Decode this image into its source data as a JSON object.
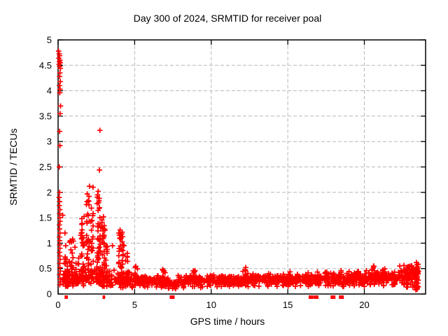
{
  "chart_data": {
    "type": "scatter",
    "title": "Day 300 of 2024, SRMTID for receiver poal",
    "xlabel": "GPS time / hours",
    "ylabel": "SRMTID / TECUs",
    "xlim": [
      0,
      24
    ],
    "ylim": [
      0,
      5
    ],
    "xtick_labels": [
      "0",
      "5",
      "10",
      "15",
      "20"
    ],
    "ytick_labels": [
      "0",
      "0.5",
      "1",
      "1.5",
      "2",
      "2.5",
      "3",
      "3.5",
      "4",
      "4.5",
      "5"
    ],
    "grid": true,
    "legend": "none",
    "marker": "plus",
    "marker_color": "#ff0000",
    "grid_color": "#b8b8b8",
    "border_color": "#000000",
    "background_color": "#ffffff",
    "points_explicit": [
      [
        0.03,
        4.78
      ],
      [
        0.07,
        4.73
      ],
      [
        0.1,
        4.69
      ],
      [
        0.05,
        4.64
      ],
      [
        0.12,
        4.6
      ],
      [
        0.08,
        4.57
      ],
      [
        0.14,
        4.55
      ],
      [
        0.06,
        4.52
      ],
      [
        0.1,
        4.48
      ],
      [
        0.15,
        4.44
      ],
      [
        0.12,
        4.35
      ],
      [
        0.1,
        4.28
      ],
      [
        0.14,
        4.18
      ],
      [
        0.09,
        4.1
      ],
      [
        0.13,
        4.03
      ],
      [
        0.11,
        3.96
      ],
      [
        0.16,
        3.7
      ],
      [
        0.13,
        3.55
      ],
      [
        0.1,
        3.2
      ],
      [
        0.12,
        2.92
      ],
      [
        0.08,
        2.5
      ],
      [
        0.1,
        2.0
      ],
      [
        0.07,
        1.9
      ],
      [
        0.1,
        1.82
      ],
      [
        0.08,
        1.74
      ],
      [
        0.12,
        1.66
      ],
      [
        0.09,
        1.58
      ],
      [
        0.11,
        1.5
      ],
      [
        0.13,
        1.43
      ],
      [
        0.08,
        1.36
      ],
      [
        0.1,
        1.28
      ],
      [
        0.12,
        1.2
      ],
      [
        0.09,
        1.12
      ],
      [
        0.11,
        1.05
      ],
      [
        0.1,
        0.97
      ],
      [
        0.12,
        0.9
      ],
      [
        0.09,
        0.82
      ],
      [
        0.11,
        0.75
      ],
      [
        0.13,
        0.68
      ],
      [
        0.1,
        0.6
      ],
      [
        0.12,
        0.52
      ],
      [
        0.14,
        0.45
      ],
      [
        0.1,
        0.38
      ],
      [
        0.12,
        0.3
      ],
      [
        0.15,
        0.24
      ],
      [
        0.11,
        0.18
      ],
      [
        0.3,
        1.55
      ],
      [
        0.45,
        1.2
      ],
      [
        0.5,
        0.95
      ],
      [
        0.75,
        1.02
      ],
      [
        0.95,
        1.08
      ],
      [
        1.1,
        0.92
      ],
      [
        2.73,
        3.22
      ],
      [
        2.7,
        2.44
      ],
      [
        2.05,
        2.12
      ],
      [
        2.28,
        2.1
      ],
      [
        1.9,
        1.97
      ],
      [
        2.02,
        1.92
      ],
      [
        2.62,
        2.02
      ],
      [
        2.58,
        1.95
      ],
      [
        2.66,
        1.88
      ],
      [
        2.55,
        1.78
      ],
      [
        2.7,
        1.7
      ],
      [
        2.96,
        1.52
      ],
      [
        3.05,
        1.25
      ],
      [
        3.55,
        0.95
      ],
      [
        4.05,
        1.26
      ],
      [
        4.15,
        1.18
      ],
      [
        4.1,
        1.1
      ],
      [
        4.3,
        0.95
      ],
      [
        12.25,
        0.52
      ],
      [
        20.6,
        0.55
      ],
      [
        23.4,
        0.62
      ],
      [
        23.45,
        0.58
      ]
    ],
    "density_columns": [
      {
        "x": 0.55,
        "w": 0.25,
        "n": 25,
        "y0": 0.15,
        "y1": 0.75
      },
      {
        "x": 0.85,
        "w": 0.3,
        "n": 20,
        "y0": 0.2,
        "y1": 1.05
      },
      {
        "x": 1.25,
        "w": 0.25,
        "n": 15,
        "y0": 0.2,
        "y1": 0.8
      },
      {
        "x": 1.6,
        "w": 0.25,
        "n": 30,
        "y0": 0.25,
        "y1": 1.55
      },
      {
        "x": 1.95,
        "w": 0.2,
        "n": 30,
        "y0": 0.3,
        "y1": 2.0
      },
      {
        "x": 2.2,
        "w": 0.2,
        "n": 25,
        "y0": 0.3,
        "y1": 1.75
      },
      {
        "x": 2.65,
        "w": 0.25,
        "n": 45,
        "y0": 0.2,
        "y1": 2.0
      },
      {
        "x": 2.95,
        "w": 0.2,
        "n": 30,
        "y0": 0.15,
        "y1": 1.5
      },
      {
        "x": 3.15,
        "w": 0.15,
        "n": 15,
        "y0": 0.15,
        "y1": 1.0
      },
      {
        "x": 4.1,
        "w": 0.3,
        "n": 35,
        "y0": 0.15,
        "y1": 1.25
      },
      {
        "x": 4.45,
        "w": 0.2,
        "n": 15,
        "y0": 0.15,
        "y1": 0.8
      },
      {
        "x": 5.1,
        "w": 0.2,
        "n": 10,
        "y0": 0.3,
        "y1": 0.57
      },
      {
        "x": 6.9,
        "w": 0.2,
        "n": 8,
        "y0": 0.3,
        "y1": 0.5
      },
      {
        "x": 8.8,
        "w": 0.3,
        "n": 10,
        "y0": 0.3,
        "y1": 0.47
      },
      {
        "x": 12.2,
        "w": 0.3,
        "n": 12,
        "y0": 0.3,
        "y1": 0.52
      },
      {
        "x": 15.1,
        "w": 0.2,
        "n": 8,
        "y0": 0.3,
        "y1": 0.45
      },
      {
        "x": 17.6,
        "w": 0.2,
        "n": 8,
        "y0": 0.28,
        "y1": 0.45
      },
      {
        "x": 18.4,
        "w": 0.25,
        "n": 10,
        "y0": 0.3,
        "y1": 0.52
      },
      {
        "x": 19.5,
        "w": 0.25,
        "n": 10,
        "y0": 0.3,
        "y1": 0.5
      },
      {
        "x": 20.6,
        "w": 0.25,
        "n": 10,
        "y0": 0.3,
        "y1": 0.55
      },
      {
        "x": 21.3,
        "w": 0.2,
        "n": 8,
        "y0": 0.3,
        "y1": 0.5
      },
      {
        "x": 22.9,
        "w": 0.2,
        "n": 10,
        "y0": 0.3,
        "y1": 0.55
      },
      {
        "x": 23.42,
        "w": 0.18,
        "n": 30,
        "y0": 0.08,
        "y1": 0.62
      }
    ],
    "density_bands": [
      {
        "x0": 0.3,
        "x1": 1.5,
        "n": 60,
        "y0": 0.12,
        "y1": 0.5
      },
      {
        "x0": 1.5,
        "x1": 3.4,
        "n": 80,
        "y0": 0.12,
        "y1": 0.55
      },
      {
        "x0": 3.4,
        "x1": 5.0,
        "n": 70,
        "y0": 0.1,
        "y1": 0.5
      },
      {
        "x0": 5.0,
        "x1": 7.2,
        "n": 130,
        "y0": 0.12,
        "y1": 0.38
      },
      {
        "x0": 7.2,
        "x1": 7.8,
        "n": 35,
        "y0": 0.07,
        "y1": 0.3
      },
      {
        "x0": 7.8,
        "x1": 12.0,
        "n": 250,
        "y0": 0.12,
        "y1": 0.4
      },
      {
        "x0": 12.0,
        "x1": 16.0,
        "n": 240,
        "y0": 0.14,
        "y1": 0.42
      },
      {
        "x0": 16.0,
        "x1": 20.0,
        "n": 240,
        "y0": 0.13,
        "y1": 0.45
      },
      {
        "x0": 20.0,
        "x1": 22.3,
        "n": 140,
        "y0": 0.15,
        "y1": 0.48
      },
      {
        "x0": 22.3,
        "x1": 23.55,
        "n": 90,
        "y0": 0.12,
        "y1": 0.6
      }
    ],
    "below_axis_marks": [
      {
        "x": 0.48
      },
      {
        "x": 0.58
      },
      {
        "x": 2.96
      },
      {
        "x": 3.02
      },
      {
        "x": 7.45,
        "wide": true
      },
      {
        "x": 7.55
      },
      {
        "x": 16.52,
        "wide": true
      },
      {
        "x": 16.75
      },
      {
        "x": 16.85
      },
      {
        "x": 16.95
      },
      {
        "x": 17.95,
        "wide": true
      },
      {
        "x": 18.5,
        "wide": true
      }
    ]
  }
}
